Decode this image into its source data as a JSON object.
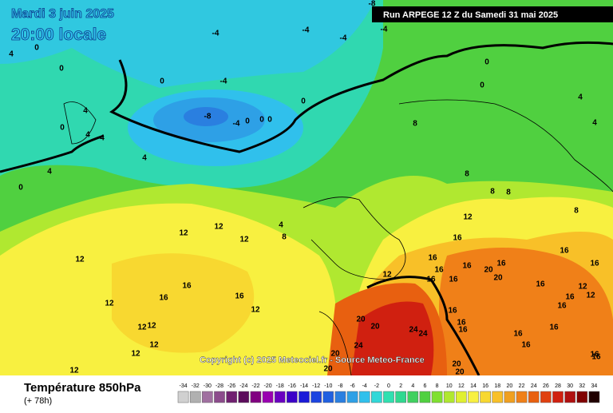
{
  "header": {
    "date": "Mardi 3 juin 2025",
    "time": "20:00 locale",
    "run": "Run ARPEGE 12 Z du Samedi 31 mai 2025"
  },
  "footer": {
    "title": "Température 850hPa",
    "lead": "(+ 78h)",
    "copyright": "Copyright (c) 2025 Meteociel.fr - Source Meteo-France"
  },
  "scale": {
    "values": [
      -34,
      -32,
      -30,
      -28,
      -26,
      -24,
      -22,
      -20,
      -18,
      -16,
      -14,
      -12,
      -10,
      -8,
      -6,
      -4,
      -2,
      0,
      2,
      4,
      6,
      8,
      10,
      12,
      14,
      16,
      18,
      20,
      22,
      24,
      26,
      28,
      30,
      32,
      34
    ],
    "colors": [
      "#d0d0d0",
      "#b0b0b0",
      "#a070a0",
      "#8c4c8c",
      "#702070",
      "#5c0c5c",
      "#800080",
      "#9900b0",
      "#6a00c0",
      "#3c00c8",
      "#1a1ad8",
      "#1c44e0",
      "#2060e0",
      "#2a7fe0",
      "#2ea0e6",
      "#30c0ec",
      "#30d8d8",
      "#30e0b0",
      "#30d890",
      "#40d060",
      "#50d040",
      "#80e030",
      "#b0e830",
      "#e0f030",
      "#f8f040",
      "#f8d830",
      "#f8c028",
      "#f0a020",
      "#f08018",
      "#e86010",
      "#e04010",
      "#d02010",
      "#b01010",
      "#800000",
      "#200000"
    ]
  },
  "map_labels": [
    -8,
    -4,
    -4,
    -4,
    -4,
    4,
    0,
    0,
    0,
    0,
    0,
    0,
    -4,
    -8,
    -4,
    0,
    0,
    0,
    4,
    0,
    4,
    4,
    4,
    4,
    0,
    4,
    4,
    8,
    8,
    8,
    8,
    8,
    12,
    12,
    12,
    12,
    12,
    12,
    12,
    12,
    12,
    12,
    12,
    16,
    16,
    16,
    16,
    12,
    12,
    4,
    8,
    16,
    16,
    16,
    16,
    16,
    16,
    16,
    16,
    16,
    20,
    20,
    12,
    12,
    16,
    16,
    16,
    16,
    16,
    16,
    16,
    16,
    16,
    20,
    20,
    24,
    24,
    24,
    20,
    20,
    20,
    20,
    16
  ]
}
